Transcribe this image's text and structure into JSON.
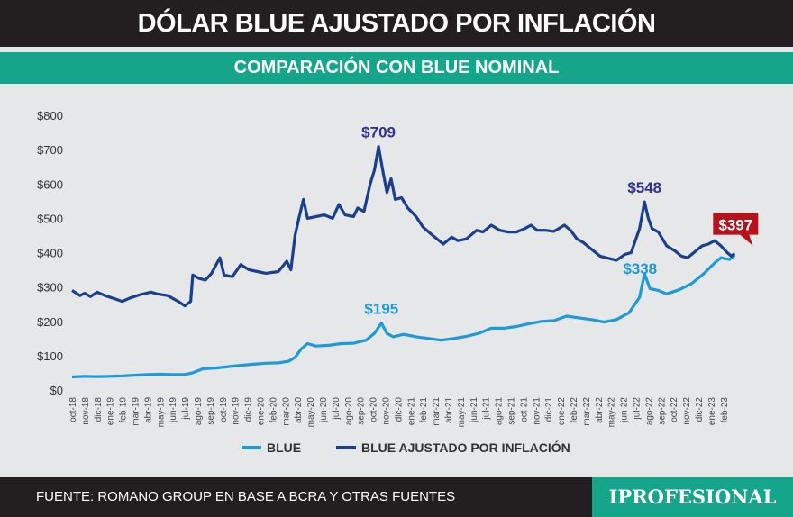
{
  "header": {
    "title": "DÓLAR BLUE AJUSTADO POR INFLACIÓN",
    "subtitle": "COMPARACIÓN CON BLUE NOMINAL"
  },
  "footer": {
    "source": "FUENTE: ROMANO GROUP EN BASE A BCRA Y OTRAS FUENTES",
    "logo": "IPROFESIONAL"
  },
  "colors": {
    "blue": "#1e9ad6",
    "adjusted": "#1b3f8b",
    "peak_label_adjusted": "#2e3192",
    "last_value_box": "#b5121b",
    "header_bg": "#231f20",
    "subheader_bg": "#14a58b",
    "background": "#e6e7e8"
  },
  "chart_data": {
    "type": "line",
    "title": "DÓLAR BLUE AJUSTADO POR INFLACIÓN",
    "subtitle": "COMPARACIÓN CON BLUE NOMINAL",
    "ylim": [
      0,
      800
    ],
    "yticks": [
      "$0",
      "$100",
      "$200",
      "$300",
      "$400",
      "$500",
      "$600",
      "$700",
      "$800"
    ],
    "yticks_values": [
      0,
      100,
      200,
      300,
      400,
      500,
      600,
      700,
      800
    ],
    "grid": false,
    "legend": "bottom",
    "categories": [
      "oct-18",
      "nov-18",
      "dic-18",
      "ene-19",
      "feb-19",
      "mar-19",
      "abr-19",
      "may-19",
      "jun-19",
      "jul-19",
      "ago-19",
      "sep-19",
      "oct-19",
      "nov-19",
      "dic-19",
      "ene-20",
      "feb-20",
      "mar-20",
      "abr-20",
      "may-20",
      "jun-20",
      "jul-20",
      "ago-20",
      "sep-20",
      "oct-20",
      "nov-20",
      "dic-20",
      "ene-21",
      "feb-21",
      "mar-21",
      "abr-21",
      "may-21",
      "jun-21",
      "jul-21",
      "ago-21",
      "sep-21",
      "oct-21",
      "nov-21",
      "dic-21",
      "ene-22",
      "feb-22",
      "mar-22",
      "abr-22",
      "may-22",
      "jun-22",
      "jul-22",
      "ago-22",
      "sep-22",
      "oct-22",
      "nov-22",
      "dic-22",
      "ene-23",
      "feb-23"
    ],
    "series": [
      {
        "name": "BLUE",
        "color": "#1e9ad6",
        "points": [
          [
            "2018-10-01",
            38
          ],
          [
            "2018-11-01",
            40
          ],
          [
            "2018-12-01",
            39
          ],
          [
            "2019-01-01",
            40
          ],
          [
            "2019-02-01",
            41
          ],
          [
            "2019-03-01",
            43
          ],
          [
            "2019-04-01",
            45
          ],
          [
            "2019-05-01",
            46
          ],
          [
            "2019-06-01",
            45
          ],
          [
            "2019-07-01",
            45
          ],
          [
            "2019-07-20",
            50
          ],
          [
            "2019-08-15",
            62
          ],
          [
            "2019-09-15",
            64
          ],
          [
            "2019-10-15",
            68
          ],
          [
            "2019-11-15",
            72
          ],
          [
            "2019-12-15",
            75
          ],
          [
            "2020-01-15",
            78
          ],
          [
            "2020-02-15",
            79
          ],
          [
            "2020-03-10",
            84
          ],
          [
            "2020-03-25",
            95
          ],
          [
            "2020-04-10",
            120
          ],
          [
            "2020-04-25",
            135
          ],
          [
            "2020-05-15",
            128
          ],
          [
            "2020-06-15",
            130
          ],
          [
            "2020-07-15",
            135
          ],
          [
            "2020-08-15",
            136
          ],
          [
            "2020-09-15",
            145
          ],
          [
            "2020-10-05",
            165
          ],
          [
            "2020-10-22",
            195
          ],
          [
            "2020-11-05",
            165
          ],
          [
            "2020-11-20",
            155
          ],
          [
            "2020-12-15",
            162
          ],
          [
            "2021-01-15",
            155
          ],
          [
            "2021-02-15",
            150
          ],
          [
            "2021-03-15",
            145
          ],
          [
            "2021-04-15",
            150
          ],
          [
            "2021-05-15",
            156
          ],
          [
            "2021-06-15",
            165
          ],
          [
            "2021-07-15",
            180
          ],
          [
            "2021-08-15",
            180
          ],
          [
            "2021-09-15",
            185
          ],
          [
            "2021-10-15",
            193
          ],
          [
            "2021-11-15",
            200
          ],
          [
            "2021-12-15",
            202
          ],
          [
            "2022-01-15",
            215
          ],
          [
            "2022-02-15",
            210
          ],
          [
            "2022-03-15",
            205
          ],
          [
            "2022-04-15",
            198
          ],
          [
            "2022-05-15",
            205
          ],
          [
            "2022-06-15",
            225
          ],
          [
            "2022-07-10",
            270
          ],
          [
            "2022-07-22",
            338
          ],
          [
            "2022-08-05",
            295
          ],
          [
            "2022-08-25",
            290
          ],
          [
            "2022-09-15",
            280
          ],
          [
            "2022-10-15",
            292
          ],
          [
            "2022-11-15",
            310
          ],
          [
            "2022-12-15",
            340
          ],
          [
            "2023-01-10",
            370
          ],
          [
            "2023-01-25",
            385
          ],
          [
            "2023-02-15",
            380
          ],
          [
            "2023-02-28",
            392
          ]
        ]
      },
      {
        "name": "BLUE AJUSTADO POR INFLACIÓN",
        "color": "#1b3f8b",
        "points": [
          [
            "2018-10-01",
            290
          ],
          [
            "2018-10-20",
            275
          ],
          [
            "2018-11-01",
            282
          ],
          [
            "2018-11-15",
            272
          ],
          [
            "2018-12-01",
            285
          ],
          [
            "2018-12-20",
            275
          ],
          [
            "2019-01-15",
            265
          ],
          [
            "2019-02-01",
            258
          ],
          [
            "2019-02-20",
            268
          ],
          [
            "2019-03-15",
            278
          ],
          [
            "2019-04-10",
            285
          ],
          [
            "2019-04-25",
            280
          ],
          [
            "2019-05-20",
            275
          ],
          [
            "2019-06-15",
            258
          ],
          [
            "2019-07-01",
            245
          ],
          [
            "2019-07-15",
            258
          ],
          [
            "2019-07-20",
            335
          ],
          [
            "2019-08-05",
            325
          ],
          [
            "2019-08-20",
            320
          ],
          [
            "2019-09-05",
            340
          ],
          [
            "2019-09-25",
            385
          ],
          [
            "2019-10-05",
            335
          ],
          [
            "2019-10-25",
            330
          ],
          [
            "2019-11-15",
            365
          ],
          [
            "2019-12-05",
            350
          ],
          [
            "2019-12-25",
            345
          ],
          [
            "2020-01-15",
            340
          ],
          [
            "2020-02-15",
            345
          ],
          [
            "2020-03-05",
            375
          ],
          [
            "2020-03-15",
            350
          ],
          [
            "2020-03-25",
            450
          ],
          [
            "2020-04-05",
            505
          ],
          [
            "2020-04-15",
            555
          ],
          [
            "2020-04-25",
            500
          ],
          [
            "2020-05-15",
            505
          ],
          [
            "2020-06-05",
            510
          ],
          [
            "2020-06-25",
            500
          ],
          [
            "2020-07-10",
            540
          ],
          [
            "2020-07-25",
            510
          ],
          [
            "2020-08-15",
            505
          ],
          [
            "2020-08-25",
            530
          ],
          [
            "2020-09-10",
            520
          ],
          [
            "2020-09-25",
            600
          ],
          [
            "2020-10-05",
            640
          ],
          [
            "2020-10-15",
            709
          ],
          [
            "2020-10-25",
            640
          ],
          [
            "2020-11-05",
            575
          ],
          [
            "2020-11-15",
            615
          ],
          [
            "2020-11-25",
            555
          ],
          [
            "2020-12-10",
            560
          ],
          [
            "2020-12-25",
            530
          ],
          [
            "2021-01-15",
            505
          ],
          [
            "2021-02-01",
            475
          ],
          [
            "2021-02-15",
            460
          ],
          [
            "2021-03-05",
            440
          ],
          [
            "2021-03-20",
            425
          ],
          [
            "2021-04-10",
            445
          ],
          [
            "2021-04-25",
            435
          ],
          [
            "2021-05-15",
            440
          ],
          [
            "2021-06-10",
            465
          ],
          [
            "2021-06-25",
            460
          ],
          [
            "2021-07-15",
            480
          ],
          [
            "2021-08-05",
            465
          ],
          [
            "2021-08-25",
            460
          ],
          [
            "2021-09-15",
            460
          ],
          [
            "2021-10-05",
            470
          ],
          [
            "2021-10-20",
            480
          ],
          [
            "2021-11-05",
            465
          ],
          [
            "2021-11-25",
            465
          ],
          [
            "2021-12-15",
            462
          ],
          [
            "2022-01-10",
            480
          ],
          [
            "2022-01-25",
            465
          ],
          [
            "2022-02-10",
            440
          ],
          [
            "2022-02-25",
            430
          ],
          [
            "2022-03-15",
            410
          ],
          [
            "2022-04-05",
            390
          ],
          [
            "2022-04-20",
            385
          ],
          [
            "2022-05-15",
            378
          ],
          [
            "2022-06-05",
            395
          ],
          [
            "2022-06-20",
            400
          ],
          [
            "2022-07-10",
            470
          ],
          [
            "2022-07-22",
            548
          ],
          [
            "2022-08-01",
            500
          ],
          [
            "2022-08-10",
            470
          ],
          [
            "2022-08-25",
            460
          ],
          [
            "2022-09-15",
            420
          ],
          [
            "2022-10-05",
            405
          ],
          [
            "2022-10-20",
            390
          ],
          [
            "2022-11-05",
            385
          ],
          [
            "2022-11-20",
            400
          ],
          [
            "2022-12-10",
            420
          ],
          [
            "2022-12-25",
            425
          ],
          [
            "2023-01-10",
            435
          ],
          [
            "2023-01-25",
            420
          ],
          [
            "2023-02-10",
            400
          ],
          [
            "2023-02-20",
            390
          ],
          [
            "2023-02-28",
            397
          ]
        ]
      }
    ],
    "annotations": [
      {
        "text": "$709",
        "series": "BLUE AJUSTADO POR INFLACIÓN",
        "x": "2020-10-15",
        "y": 709
      },
      {
        "text": "$548",
        "series": "BLUE AJUSTADO POR INFLACIÓN",
        "x": "2022-07-22",
        "y": 548
      },
      {
        "text": "$397",
        "series": "BLUE AJUSTADO POR INFLACIÓN",
        "x": "2023-02-28",
        "y": 397,
        "boxed": true
      },
      {
        "text": "$195",
        "series": "BLUE",
        "x": "2020-10-22",
        "y": 195
      },
      {
        "text": "$338",
        "series": "BLUE",
        "x": "2022-07-22",
        "y": 338
      }
    ]
  }
}
